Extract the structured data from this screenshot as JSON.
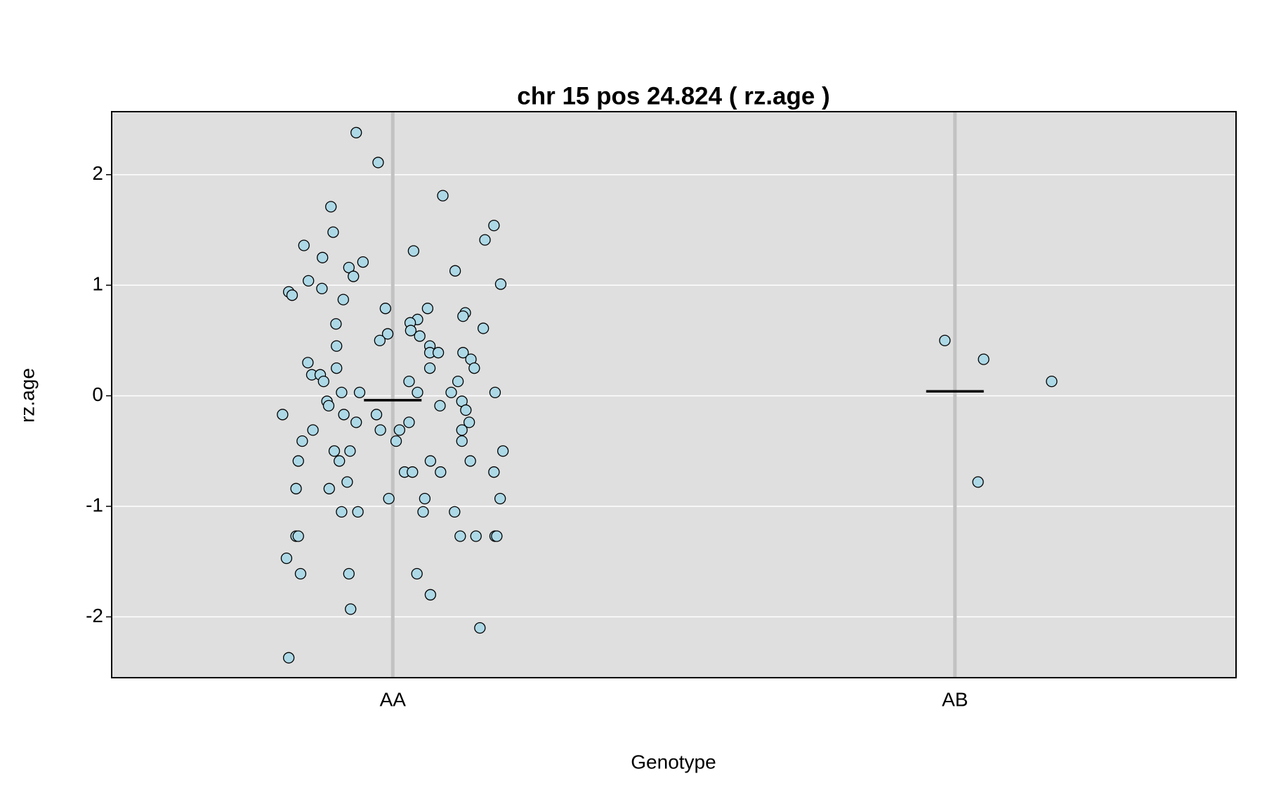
{
  "chart_data": {
    "type": "scatter",
    "title": "chr 15 pos 24.824 ( rz.age )",
    "x_label": "Genotype",
    "y_label": "rz.age",
    "xlim": [
      0.5,
      2.5
    ],
    "ylim": [
      -2.55,
      2.57
    ],
    "xticks": [
      {
        "value": 1,
        "label": "AA"
      },
      {
        "value": 2,
        "label": "AB"
      }
    ],
    "yticks": [
      -2,
      -1,
      0,
      1,
      2
    ],
    "grid": true,
    "background": "#dfdfdf",
    "means": [
      -0.04,
      0.04
    ],
    "mean_color": "#000000",
    "series": [
      {
        "color": "#add8e6",
        "x": [
          0.935,
          0.974,
          1.089,
          0.89,
          1.18,
          0.894,
          1.164,
          0.842,
          1.037,
          0.875,
          0.947,
          0.922,
          1.111,
          0.93,
          0.85,
          1.192,
          0.874,
          0.815,
          0.821,
          0.912,
          0.987,
          1.062,
          1.129,
          1.125,
          1.044,
          1.031,
          0.899,
          1.161,
          1.032,
          0.991,
          1.048,
          0.977,
          1.982,
          0.9,
          1.066,
          1.066,
          1.081,
          1.125,
          2.051,
          1.139,
          0.849,
          0.9,
          1.066,
          1.145,
          0.856,
          0.871,
          0.877,
          1.029,
          1.116,
          2.172,
          0.909,
          0.941,
          1.044,
          1.104,
          1.182,
          0.883,
          1.123,
          0.886,
          1.084,
          1.13,
          0.804,
          0.913,
          0.971,
          0.935,
          1.029,
          1.136,
          0.858,
          0.978,
          1.012,
          1.123,
          0.839,
          1.006,
          1.123,
          0.896,
          0.924,
          1.196,
          0.832,
          0.905,
          1.067,
          1.138,
          1.021,
          1.035,
          1.085,
          1.18,
          2.041,
          0.919,
          0.828,
          0.887,
          0.993,
          1.057,
          1.191,
          0.909,
          0.938,
          1.054,
          1.11,
          0.828,
          0.832,
          1.12,
          1.148,
          1.182,
          1.185,
          0.811,
          0.836,
          0.922,
          1.043,
          1.067,
          0.925,
          1.155,
          0.815
        ],
        "y": [
          2.38,
          2.11,
          1.81,
          1.71,
          1.54,
          1.48,
          1.41,
          1.36,
          1.31,
          1.25,
          1.21,
          1.16,
          1.13,
          1.08,
          1.04,
          1.01,
          0.97,
          0.94,
          0.91,
          0.87,
          0.79,
          0.79,
          0.75,
          0.72,
          0.69,
          0.66,
          0.65,
          0.61,
          0.59,
          0.56,
          0.54,
          0.5,
          0.5,
          0.45,
          0.45,
          0.39,
          0.39,
          0.39,
          0.33,
          0.33,
          0.3,
          0.25,
          0.25,
          0.25,
          0.19,
          0.19,
          0.13,
          0.13,
          0.13,
          0.13,
          0.03,
          0.03,
          0.03,
          0.03,
          0.03,
          -0.05,
          -0.05,
          -0.09,
          -0.09,
          -0.13,
          -0.17,
          -0.17,
          -0.17,
          -0.24,
          -0.24,
          -0.24,
          -0.31,
          -0.31,
          -0.31,
          -0.31,
          -0.41,
          -0.41,
          -0.41,
          -0.5,
          -0.5,
          -0.5,
          -0.59,
          -0.59,
          -0.59,
          -0.59,
          -0.69,
          -0.69,
          -0.69,
          -0.69,
          -0.78,
          -0.78,
          -0.84,
          -0.84,
          -0.93,
          -0.93,
          -0.93,
          -1.05,
          -1.05,
          -1.05,
          -1.05,
          -1.27,
          -1.27,
          -1.27,
          -1.27,
          -1.27,
          -1.27,
          -1.47,
          -1.61,
          -1.61,
          -1.61,
          -1.8,
          -1.93,
          -2.1,
          -2.37
        ]
      }
    ]
  }
}
